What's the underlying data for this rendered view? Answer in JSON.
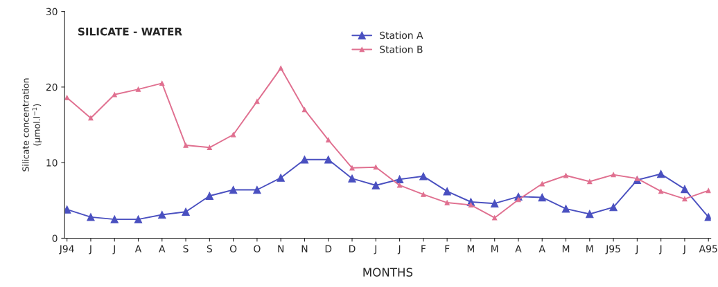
{
  "chart_data": {
    "type": "line",
    "title": "SILICATE - WATER",
    "xlabel": "MONTHS",
    "ylabel": "Silicate concentration\n(µmol.l$^{−1}$)",
    "categories": [
      "J94",
      "J",
      "J",
      "A",
      "A",
      "S",
      "S",
      "O",
      "O",
      "N",
      "N",
      "D",
      "D",
      "J",
      "J",
      "F",
      "F",
      "M",
      "M",
      "A",
      "A",
      "M",
      "M",
      "J95",
      "J",
      "J",
      "J",
      "A95"
    ],
    "series": [
      {
        "name": "Station A",
        "color": "#4a50c0",
        "values": [
          3.8,
          2.8,
          2.5,
          2.5,
          3.1,
          3.5,
          5.6,
          6.4,
          6.4,
          8.0,
          10.4,
          10.4,
          7.9,
          7.0,
          7.8,
          8.2,
          6.2,
          4.8,
          4.6,
          5.5,
          5.4,
          3.9,
          3.2,
          4.1,
          7.7,
          8.5,
          6.5,
          2.8
        ]
      },
      {
        "name": "Station B",
        "color": "#e07090",
        "values": [
          18.6,
          15.9,
          19.0,
          19.7,
          20.5,
          12.3,
          12.0,
          13.7,
          18.1,
          22.5,
          17.0,
          13.0,
          9.3,
          9.4,
          7.0,
          5.8,
          4.7,
          4.4,
          2.7,
          5.1,
          7.2,
          8.3,
          7.5,
          8.4,
          7.9,
          6.2,
          5.2,
          6.3
        ]
      }
    ],
    "ylim": [
      0,
      30
    ],
    "yticks": [
      0,
      10,
      20,
      30
    ],
    "grid": false,
    "legend": "top",
    "marker": "triangle",
    "line_style": "solid"
  }
}
